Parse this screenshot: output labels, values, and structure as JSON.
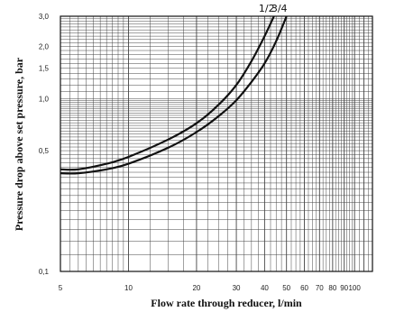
{
  "chart_data": {
    "type": "line",
    "xlabel": "Flow rate through reducer, l/min",
    "ylabel": "Pressure drop above set pressure, bar",
    "x_scale": "log",
    "y_scale": "log",
    "xlim": [
      5,
      120
    ],
    "ylim": [
      0.1,
      3.0
    ],
    "grid": true,
    "x_ticks": [
      "5",
      "10",
      "20",
      "30",
      "40",
      "50",
      "60",
      "70",
      "80",
      "90",
      "100"
    ],
    "y_ticks": [
      "0,1",
      "0,5",
      "1,0",
      "1,5",
      "2,0",
      "3,0"
    ],
    "series": [
      {
        "name": "1/2",
        "x": [
          5,
          6,
          8,
          10,
          15,
          20,
          25,
          30,
          35,
          40,
          44
        ],
        "y": [
          0.39,
          0.39,
          0.42,
          0.46,
          0.58,
          0.72,
          0.92,
          1.2,
          1.65,
          2.3,
          3.0
        ]
      },
      {
        "name": "3/4",
        "x": [
          5,
          6,
          8,
          10,
          15,
          20,
          25,
          30,
          35,
          40,
          45,
          50
        ],
        "y": [
          0.37,
          0.37,
          0.39,
          0.42,
          0.52,
          0.64,
          0.79,
          0.98,
          1.25,
          1.6,
          2.15,
          3.0
        ]
      }
    ]
  }
}
